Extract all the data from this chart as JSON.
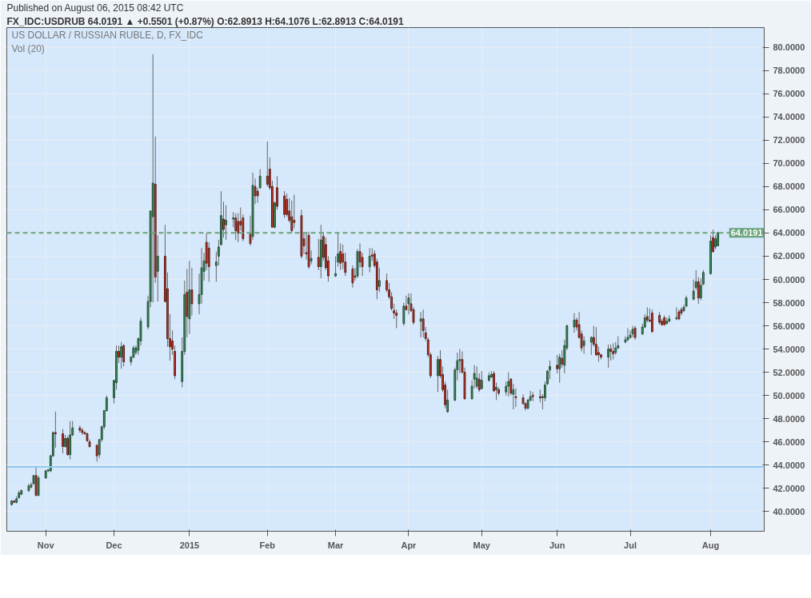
{
  "chart_data": {
    "type": "candlestick",
    "title": "Published on August 06, 2015 08:42 UTC",
    "subtitle": "FX_IDC:USDRUB 64.0191 ▲ +0.5501 (+0.87%) O:62.8913 H:64.1076 L:62.8913 C:64.0191",
    "annotations": [
      "US DOLLAR / RUSSIAN RUBLE, D, FX_IDC",
      "Vol (20)"
    ],
    "x": [
      "2014-10-20",
      "2014-10-21",
      "2014-10-22",
      "2014-10-23",
      "2014-10-24",
      "2014-10-27",
      "2014-10-28",
      "2014-10-29",
      "2014-10-30",
      "2014-10-31",
      "2014-11-03",
      "2014-11-04",
      "2014-11-05",
      "2014-11-06",
      "2014-11-07",
      "2014-11-10",
      "2014-11-11",
      "2014-11-12",
      "2014-11-13",
      "2014-11-14",
      "2014-11-17",
      "2014-11-18",
      "2014-11-19",
      "2014-11-20",
      "2014-11-21",
      "2014-11-24",
      "2014-11-25",
      "2014-11-26",
      "2014-11-27",
      "2014-11-28",
      "2014-12-01",
      "2014-12-02",
      "2014-12-03",
      "2014-12-04",
      "2014-12-05",
      "2014-12-08",
      "2014-12-09",
      "2014-12-10",
      "2014-12-11",
      "2014-12-12",
      "2014-12-15",
      "2014-12-16",
      "2014-12-17",
      "2014-12-18",
      "2014-12-19",
      "2014-12-22",
      "2014-12-23",
      "2014-12-24",
      "2014-12-25",
      "2014-12-26",
      "2014-12-29",
      "2014-12-30",
      "2014-12-31",
      "2015-01-01",
      "2015-01-02",
      "2015-01-05",
      "2015-01-06",
      "2015-01-07",
      "2015-01-08",
      "2015-01-09",
      "2015-01-12",
      "2015-01-13",
      "2015-01-14",
      "2015-01-15",
      "2015-01-16",
      "2015-01-19",
      "2015-01-20",
      "2015-01-21",
      "2015-01-22",
      "2015-01-23",
      "2015-01-26",
      "2015-01-27",
      "2015-01-28",
      "2015-01-29",
      "2015-01-30",
      "2015-02-02",
      "2015-02-03",
      "2015-02-04",
      "2015-02-05",
      "2015-02-06",
      "2015-02-09",
      "2015-02-10",
      "2015-02-11",
      "2015-02-12",
      "2015-02-13",
      "2015-02-16",
      "2015-02-17",
      "2015-02-18",
      "2015-02-19",
      "2015-02-20",
      "2015-02-23",
      "2015-02-24",
      "2015-02-25",
      "2015-02-26",
      "2015-02-27",
      "2015-03-02",
      "2015-03-03",
      "2015-03-04",
      "2015-03-05",
      "2015-03-06",
      "2015-03-09",
      "2015-03-10",
      "2015-03-11",
      "2015-03-12",
      "2015-03-13",
      "2015-03-16",
      "2015-03-17",
      "2015-03-18",
      "2015-03-19",
      "2015-03-20",
      "2015-03-23",
      "2015-03-24",
      "2015-03-25",
      "2015-03-26",
      "2015-03-27",
      "2015-03-30",
      "2015-03-31",
      "2015-04-01",
      "2015-04-02",
      "2015-04-03",
      "2015-04-06",
      "2015-04-07",
      "2015-04-08",
      "2015-04-09",
      "2015-04-10",
      "2015-04-13",
      "2015-04-14",
      "2015-04-15",
      "2015-04-16",
      "2015-04-17",
      "2015-04-20",
      "2015-04-21",
      "2015-04-22",
      "2015-04-23",
      "2015-04-24",
      "2015-04-27",
      "2015-04-28",
      "2015-04-29",
      "2015-04-30",
      "2015-05-01",
      "2015-05-04",
      "2015-05-05",
      "2015-05-06",
      "2015-05-07",
      "2015-05-08",
      "2015-05-11",
      "2015-05-12",
      "2015-05-13",
      "2015-05-14",
      "2015-05-15",
      "2015-05-18",
      "2015-05-19",
      "2015-05-20",
      "2015-05-21",
      "2015-05-22",
      "2015-05-25",
      "2015-05-26",
      "2015-05-27",
      "2015-05-28",
      "2015-05-29",
      "2015-06-01",
      "2015-06-02",
      "2015-06-03",
      "2015-06-04",
      "2015-06-05",
      "2015-06-08",
      "2015-06-09",
      "2015-06-10",
      "2015-06-11",
      "2015-06-12",
      "2015-06-15",
      "2015-06-16",
      "2015-06-17",
      "2015-06-18",
      "2015-06-19",
      "2015-06-22",
      "2015-06-23",
      "2015-06-24",
      "2015-06-25",
      "2015-06-26",
      "2015-06-29",
      "2015-06-30",
      "2015-07-01",
      "2015-07-02",
      "2015-07-03",
      "2015-07-06",
      "2015-07-07",
      "2015-07-08",
      "2015-07-09",
      "2015-07-10",
      "2015-07-13",
      "2015-07-14",
      "2015-07-15",
      "2015-07-16",
      "2015-07-17",
      "2015-07-20",
      "2015-07-21",
      "2015-07-22",
      "2015-07-23",
      "2015-07-24",
      "2015-07-27",
      "2015-07-28",
      "2015-07-29",
      "2015-07-30",
      "2015-07-31",
      "2015-08-03",
      "2015-08-04",
      "2015-08-05",
      "2015-08-06"
    ],
    "ohlc": [
      [
        40.6,
        41.0,
        40.5,
        40.9
      ],
      [
        40.9,
        41.0,
        40.7,
        40.8
      ],
      [
        40.8,
        41.3,
        40.7,
        41.1
      ],
      [
        41.2,
        41.8,
        41.1,
        41.6
      ],
      [
        41.5,
        41.9,
        41.4,
        41.8
      ],
      [
        41.8,
        42.4,
        41.7,
        42.2
      ],
      [
        42.1,
        42.5,
        42.0,
        42.3
      ],
      [
        42.4,
        43.1,
        42.3,
        43.1
      ],
      [
        43.1,
        43.8,
        41.3,
        41.4
      ],
      [
        41.4,
        43.1,
        41.3,
        42.9
      ],
      [
        42.9,
        43.6,
        42.8,
        43.5
      ],
      [
        43.5,
        43.6,
        43.4,
        43.6
      ],
      [
        43.5,
        44.9,
        43.4,
        44.8
      ],
      [
        44.8,
        46.9,
        44.7,
        46.8
      ],
      [
        46.8,
        48.6,
        45.5,
        46.7
      ],
      [
        46.7,
        47.1,
        45.0,
        45.6
      ],
      [
        45.6,
        46.6,
        45.5,
        46.3
      ],
      [
        46.3,
        46.5,
        44.8,
        44.9
      ],
      [
        44.9,
        47.8,
        44.5,
        46.6
      ],
      [
        46.6,
        47.8,
        46.5,
        47.2
      ],
      [
        47.2,
        47.4,
        46.8,
        47.0
      ],
      [
        47.0,
        47.2,
        46.6,
        46.8
      ],
      [
        46.8,
        46.9,
        46.6,
        46.7
      ],
      [
        46.7,
        46.8,
        46.0,
        46.1
      ],
      [
        46.0,
        46.2,
        45.5,
        45.6
      ],
      [
        45.7,
        45.8,
        44.3,
        44.8
      ],
      [
        44.9,
        46.2,
        44.6,
        46.2
      ],
      [
        46.2,
        47.4,
        46.0,
        47.3
      ],
      [
        47.3,
        48.7,
        47.1,
        48.7
      ],
      [
        48.7,
        50.0,
        48.6,
        49.8
      ],
      [
        49.8,
        51.3,
        49.3,
        51.3
      ],
      [
        51.1,
        54.3,
        50.5,
        53.8
      ],
      [
        53.8,
        54.3,
        52.8,
        53.3
      ],
      [
        53.3,
        54.6,
        52.3,
        54.2
      ],
      [
        54.3,
        54.4,
        52.5,
        52.9
      ],
      [
        52.9,
        53.4,
        52.6,
        53.3
      ],
      [
        53.3,
        54.3,
        53.2,
        54.1
      ],
      [
        53.7,
        54.3,
        53.5,
        54.1
      ],
      [
        53.9,
        55.0,
        53.5,
        54.9
      ],
      [
        54.7,
        56.7,
        54.3,
        56.4
      ],
      [
        55.9,
        58.6,
        55.7,
        58.1
      ],
      [
        58.1,
        65.9,
        57.6,
        65.9
      ],
      [
        65.4,
        79.4,
        58.0,
        68.3
      ],
      [
        68.2,
        72.3,
        59.7,
        60.2
      ],
      [
        60.7,
        63.8,
        58.1,
        62.0
      ],
      [
        62.0,
        64.7,
        58.0,
        58.1
      ],
      [
        59.2,
        60.6,
        54.2,
        54.9
      ],
      [
        54.9,
        57.0,
        53.0,
        54.2
      ],
      [
        54.7,
        55.6,
        53.5,
        54.0
      ],
      [
        53.8,
        54.3,
        51.4,
        51.7
      ],
      [
        51.2,
        55.0,
        50.7,
        53.8
      ],
      [
        53.8,
        59.9,
        53.5,
        58.7
      ],
      [
        58.9,
        60.9,
        55.0,
        56.8
      ],
      [
        56.6,
        61.6,
        55.3,
        59.1
      ],
      [
        59.1,
        61.0,
        56.9,
        57.9
      ],
      [
        57.9,
        60.5,
        57.0,
        58.7
      ],
      [
        58.7,
        62.7,
        57.9,
        61.0
      ],
      [
        60.7,
        62.3,
        59.9,
        61.6
      ],
      [
        63.2,
        64.0,
        60.8,
        61.4
      ],
      [
        62.7,
        63.2,
        59.8,
        61.1
      ],
      [
        61.2,
        62.4,
        59.8,
        61.5
      ],
      [
        62.0,
        63.4,
        61.2,
        62.8
      ],
      [
        63.0,
        67.6,
        62.9,
        65.5
      ],
      [
        65.2,
        66.7,
        63.6,
        64.3
      ],
      [
        64.7,
        66.4,
        63.4,
        65.1
      ],
      [
        65.2,
        65.8,
        64.5,
        65.3
      ],
      [
        65.3,
        65.7,
        63.4,
        64.2
      ],
      [
        65.0,
        65.7,
        63.2,
        64.0
      ],
      [
        65.0,
        66.2,
        64.2,
        64.7
      ],
      [
        65.3,
        65.6,
        63.3,
        63.5
      ],
      [
        63.9,
        65.5,
        62.9,
        63.1
      ],
      [
        63.7,
        69.2,
        63.4,
        68.1
      ],
      [
        68.0,
        68.7,
        66.5,
        67.2
      ],
      [
        67.6,
        67.9,
        66.6,
        67.2
      ],
      [
        67.9,
        69.5,
        67.8,
        68.9
      ],
      [
        68.9,
        71.9,
        68.0,
        68.2
      ],
      [
        69.5,
        70.5,
        67.7,
        67.9
      ],
      [
        68.0,
        68.5,
        64.5,
        64.5
      ],
      [
        64.5,
        66.7,
        64.4,
        66.6
      ],
      [
        67.9,
        68.9,
        66.0,
        66.3
      ],
      [
        67.2,
        67.6,
        65.3,
        65.6
      ],
      [
        66.9,
        67.4,
        65.4,
        65.6
      ],
      [
        65.9,
        67.0,
        64.9,
        65.1
      ],
      [
        65.4,
        66.8,
        64.0,
        64.2
      ],
      [
        65.1,
        67.3,
        64.4,
        64.9
      ],
      [
        65.5,
        66.0,
        61.8,
        62.0
      ],
      [
        63.5,
        64.0,
        62.2,
        62.9
      ],
      [
        62.3,
        64.0,
        61.7,
        62.2
      ],
      [
        63.8,
        64.1,
        60.9,
        61.1
      ],
      [
        61.6,
        62.5,
        61.3,
        61.8
      ],
      [
        61.9,
        63.5,
        60.8,
        61.1
      ],
      [
        61.1,
        64.7,
        60.1,
        63.4
      ],
      [
        63.7,
        64.1,
        61.6,
        61.9
      ],
      [
        63.0,
        63.6,
        60.8,
        61.0
      ],
      [
        61.6,
        62.0,
        59.8,
        60.3
      ],
      [
        60.3,
        62.0,
        60.2,
        60.5
      ],
      [
        61.5,
        64.0,
        61.1,
        62.2
      ],
      [
        62.4,
        63.1,
        60.8,
        61.4
      ],
      [
        62.2,
        63.0,
        60.9,
        61.5
      ],
      [
        61.5,
        62.3,
        60.3,
        60.6
      ],
      [
        60.9,
        61.2,
        59.3,
        59.7
      ],
      [
        60.3,
        61.0,
        59.9,
        60.2
      ],
      [
        60.3,
        62.6,
        60.1,
        62.4
      ],
      [
        62.4,
        63.1,
        61.0,
        61.5
      ],
      [
        61.9,
        62.3,
        60.3,
        61.1
      ],
      [
        61.1,
        62.7,
        60.6,
        62.0
      ],
      [
        62.1,
        62.7,
        61.6,
        62.0
      ],
      [
        62.2,
        62.5,
        61.0,
        61.2
      ],
      [
        61.5,
        61.8,
        58.3,
        59.1
      ],
      [
        59.4,
        61.0,
        58.9,
        59.9
      ],
      [
        59.9,
        60.5,
        58.9,
        59.1
      ],
      [
        59.1,
        59.7,
        58.3,
        58.5
      ],
      [
        58.5,
        58.9,
        57.3,
        57.5
      ],
      [
        57.3,
        57.9,
        56.6,
        57.1
      ],
      [
        57.1,
        57.4,
        55.8,
        56.9
      ],
      [
        56.2,
        58.0,
        56.0,
        57.7
      ],
      [
        57.7,
        58.6,
        57.3,
        57.4
      ],
      [
        57.9,
        58.8,
        57.0,
        58.4
      ],
      [
        57.9,
        58.8,
        57.2,
        57.3
      ],
      [
        57.4,
        57.6,
        56.1,
        56.3
      ],
      [
        56.4,
        57.2,
        55.0,
        56.6
      ],
      [
        56.6,
        57.4,
        55.0,
        55.6
      ],
      [
        55.4,
        55.9,
        54.7,
        54.9
      ],
      [
        54.8,
        55.0,
        53.3,
        53.5
      ],
      [
        53.5,
        53.7,
        51.5,
        51.7
      ],
      [
        51.7,
        53.4,
        50.3,
        53.1
      ],
      [
        53.1,
        53.9,
        51.5,
        51.7
      ],
      [
        51.8,
        52.5,
        50.3,
        50.5
      ],
      [
        50.9,
        51.2,
        48.9,
        49.2
      ],
      [
        48.6,
        50.5,
        48.5,
        49.6
      ],
      [
        49.6,
        52.4,
        49.5,
        52.2
      ],
      [
        52.2,
        53.7,
        51.3,
        53.0
      ],
      [
        53.0,
        54.0,
        51.9,
        53.1
      ],
      [
        53.1,
        53.8,
        51.9,
        52.0
      ],
      [
        52.0,
        52.4,
        49.7,
        49.7
      ],
      [
        49.7,
        51.3,
        49.7,
        50.8
      ],
      [
        51.4,
        52.6,
        50.6,
        51.9
      ],
      [
        50.8,
        52.5,
        50.6,
        51.5
      ],
      [
        51.4,
        51.9,
        50.3,
        50.5
      ],
      [
        50.6,
        52.1,
        50.5,
        51.3
      ],
      [
        51.3,
        52.0,
        51.2,
        51.7
      ],
      [
        51.6,
        52.1,
        51.5,
        51.8
      ],
      [
        51.9,
        52.1,
        50.3,
        50.4
      ],
      [
        50.5,
        51.1,
        49.6,
        50.7
      ],
      [
        50.5,
        50.7,
        50.0,
        50.2
      ],
      [
        50.3,
        51.2,
        50.0,
        50.8
      ],
      [
        50.8,
        52.0,
        49.9,
        51.2
      ],
      [
        51.4,
        51.5,
        50.0,
        50.2
      ],
      [
        50.1,
        51.0,
        48.8,
        50.5
      ],
      [
        49.9,
        50.6,
        49.0,
        49.8
      ],
      [
        49.8,
        50.1,
        49.2,
        49.3
      ],
      [
        49.3,
        49.4,
        48.7,
        48.9
      ],
      [
        48.9,
        49.7,
        48.8,
        49.6
      ],
      [
        49.6,
        50.4,
        49.5,
        49.9
      ],
      [
        50.0,
        50.3,
        49.5,
        49.9
      ],
      [
        49.9,
        50.5,
        49.4,
        49.8
      ],
      [
        49.8,
        50.1,
        48.8,
        49.9
      ],
      [
        49.8,
        51.2,
        49.5,
        50.9
      ],
      [
        51.0,
        52.2,
        50.9,
        52.1
      ],
      [
        52.2,
        53.0,
        51.4,
        52.5
      ],
      [
        52.6,
        53.5,
        51.9,
        52.3
      ],
      [
        52.3,
        53.6,
        51.1,
        53.3
      ],
      [
        53.2,
        53.9,
        52.4,
        52.7
      ],
      [
        52.6,
        54.8,
        51.9,
        54.3
      ],
      [
        54.1,
        56.1,
        53.9,
        56.0
      ],
      [
        55.9,
        57.1,
        55.4,
        56.5
      ],
      [
        56.5,
        56.7,
        55.6,
        55.9
      ],
      [
        56.1,
        57.2,
        54.9,
        55.0
      ],
      [
        55.3,
        55.6,
        53.8,
        54.1
      ],
      [
        54.3,
        55.1,
        53.6,
        54.7
      ],
      [
        54.6,
        55.1,
        53.5,
        55.0
      ],
      [
        55.0,
        56.0,
        54.2,
        54.4
      ],
      [
        54.4,
        55.9,
        53.4,
        53.5
      ],
      [
        53.7,
        54.2,
        52.9,
        53.5
      ],
      [
        53.5,
        53.6,
        53.1,
        53.3
      ],
      [
        53.3,
        54.4,
        52.4,
        54.0
      ],
      [
        54.0,
        54.4,
        53.0,
        53.8
      ],
      [
        53.8,
        54.5,
        53.1,
        53.6
      ],
      [
        53.7,
        54.6,
        53.5,
        54.1
      ],
      [
        54.1,
        55.1,
        54.0,
        54.3
      ],
      [
        54.6,
        55.1,
        54.5,
        54.8
      ],
      [
        54.8,
        55.8,
        54.7,
        55.0
      ],
      [
        55.0,
        55.6,
        54.9,
        55.2
      ],
      [
        55.3,
        56.0,
        55.0,
        55.7
      ],
      [
        55.8,
        56.0,
        54.8,
        55.0
      ],
      [
        55.3,
        56.2,
        55.2,
        55.9
      ],
      [
        55.9,
        57.0,
        55.8,
        56.7
      ],
      [
        56.8,
        57.6,
        56.3,
        56.5
      ],
      [
        56.5,
        57.5,
        56.3,
        56.4
      ],
      [
        57.1,
        57.4,
        55.4,
        55.5
      ],
      [
        56.9,
        57.2,
        56.1,
        56.3
      ],
      [
        56.4,
        56.6,
        56.0,
        56.1
      ],
      [
        56.7,
        56.9,
        56.0,
        56.1
      ],
      [
        56.2,
        56.7,
        56.1,
        56.4
      ],
      [
        56.4,
        56.9,
        56.3,
        56.6
      ],
      [
        56.6,
        57.6,
        56.5,
        56.7
      ],
      [
        57.2,
        57.4,
        56.5,
        56.6
      ],
      [
        57.4,
        57.6,
        56.9,
        57.1
      ],
      [
        57.3,
        57.8,
        57.2,
        57.6
      ],
      [
        57.7,
        58.6,
        57.6,
        58.4
      ],
      [
        58.3,
        60.0,
        58.2,
        59.0
      ],
      [
        59.3,
        60.8,
        59.1,
        59.8
      ],
      [
        59.8,
        60.2,
        57.9,
        58.4
      ],
      [
        58.4,
        60.1,
        58.2,
        59.5
      ],
      [
        59.6,
        60.8,
        59.5,
        60.6
      ],
      [
        60.5,
        63.8,
        60.4,
        63.3
      ],
      [
        63.6,
        64.3,
        62.3,
        62.4
      ],
      [
        62.8,
        63.8,
        62.6,
        63.5
      ],
      [
        62.8913,
        64.1076,
        62.8913,
        64.0191
      ]
    ],
    "xlim": [
      "2014-10-18",
      "2015-08-25"
    ],
    "xticks": [
      {
        "value": "2014-11-03",
        "label": "Nov"
      },
      {
        "value": "2014-12-01",
        "label": "Dec"
      },
      {
        "value": "2015-01-01",
        "label": "2015"
      },
      {
        "value": "2015-02-02",
        "label": "Feb"
      },
      {
        "value": "2015-03-02",
        "label": "Mar"
      },
      {
        "value": "2015-04-01",
        "label": "Apr"
      },
      {
        "value": "2015-05-01",
        "label": "May"
      },
      {
        "value": "2015-06-01",
        "label": "Jun"
      },
      {
        "value": "2015-07-01",
        "label": "Jul"
      },
      {
        "value": "2015-08-03",
        "label": "Aug"
      }
    ],
    "ylim": [
      38.3,
      81.7
    ],
    "yticks": [
      {
        "value": 40,
        "label": "40.0000"
      },
      {
        "value": 42,
        "label": "42.0000"
      },
      {
        "value": 44,
        "label": "44.0000"
      },
      {
        "value": 46,
        "label": "46.0000"
      },
      {
        "value": 48,
        "label": "48.0000"
      },
      {
        "value": 50,
        "label": "50.0000"
      },
      {
        "value": 52,
        "label": "52.0000"
      },
      {
        "value": 54,
        "label": "54.0000"
      },
      {
        "value": 56,
        "label": "56.0000"
      },
      {
        "value": 58,
        "label": "58.0000"
      },
      {
        "value": 60,
        "label": "60.0000"
      },
      {
        "value": 62,
        "label": "62.0000"
      },
      {
        "value": 64,
        "label": "64.0000"
      },
      {
        "value": 66,
        "label": "66.0000"
      },
      {
        "value": 68,
        "label": "68.0000"
      },
      {
        "value": 70,
        "label": "70.0000"
      },
      {
        "value": 72,
        "label": "72.0000"
      },
      {
        "value": 74,
        "label": "74.0000"
      },
      {
        "value": 76,
        "label": "76.0000"
      },
      {
        "value": 78,
        "label": "78.0000"
      },
      {
        "value": 80,
        "label": "80.0000"
      }
    ],
    "ref_lines": [
      {
        "axis": "y",
        "value": 64.0191,
        "label": "64.0191",
        "color": "#6aa37c",
        "line_style": "dashed"
      },
      {
        "axis": "y",
        "value": 43.85,
        "color": "#8ecbf0",
        "line_style": "solid"
      }
    ],
    "grid": true
  }
}
